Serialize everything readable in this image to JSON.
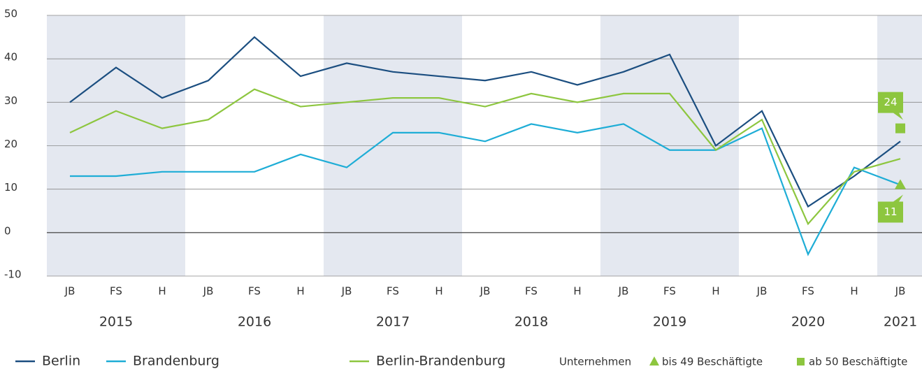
{
  "chart_data": {
    "type": "line",
    "groups": [
      {
        "year": "2015",
        "periods": [
          "JB",
          "FS",
          "H"
        ]
      },
      {
        "year": "2016",
        "periods": [
          "JB",
          "FS",
          "H"
        ]
      },
      {
        "year": "2017",
        "periods": [
          "JB",
          "FS",
          "H"
        ]
      },
      {
        "year": "2018",
        "periods": [
          "JB",
          "FS",
          "H"
        ]
      },
      {
        "year": "2019",
        "periods": [
          "JB",
          "FS",
          "H"
        ]
      },
      {
        "year": "2020",
        "periods": [
          "JB",
          "FS",
          "H"
        ]
      },
      {
        "year": "2021",
        "periods": [
          "JB"
        ]
      }
    ],
    "series": [
      {
        "name": "Berlin",
        "color": "#1b4e80",
        "values": [
          30,
          38,
          31,
          35,
          45,
          36,
          39,
          37,
          36,
          35,
          37,
          34,
          37,
          41,
          20,
          28,
          6,
          13,
          21
        ]
      },
      {
        "name": "Brandenburg",
        "color": "#1eadd6",
        "values": [
          13,
          13,
          14,
          14,
          14,
          18,
          15,
          23,
          23,
          21,
          25,
          23,
          25,
          19,
          19,
          24,
          -5,
          15,
          11
        ]
      },
      {
        "name": "Berlin-Brandenburg",
        "color": "#8dc63f",
        "values": [
          23,
          28,
          24,
          26,
          33,
          29,
          30,
          31,
          31,
          29,
          32,
          30,
          32,
          32,
          19,
          26,
          2,
          14,
          17
        ]
      }
    ],
    "legend_title": "Unternehmen",
    "markers": [
      {
        "name": "bis 49 Beschäftigte",
        "shape": "triangle",
        "color": "#8dc63f",
        "value": 11
      },
      {
        "name": "ab 50 Beschäftigte",
        "shape": "square",
        "color": "#8dc63f",
        "value": 24
      }
    ],
    "ylim": [
      -10,
      50
    ],
    "yticks": [
      -10,
      0,
      10,
      20,
      30,
      40,
      50
    ],
    "grid": true,
    "band_color": "#e4e8f0"
  }
}
